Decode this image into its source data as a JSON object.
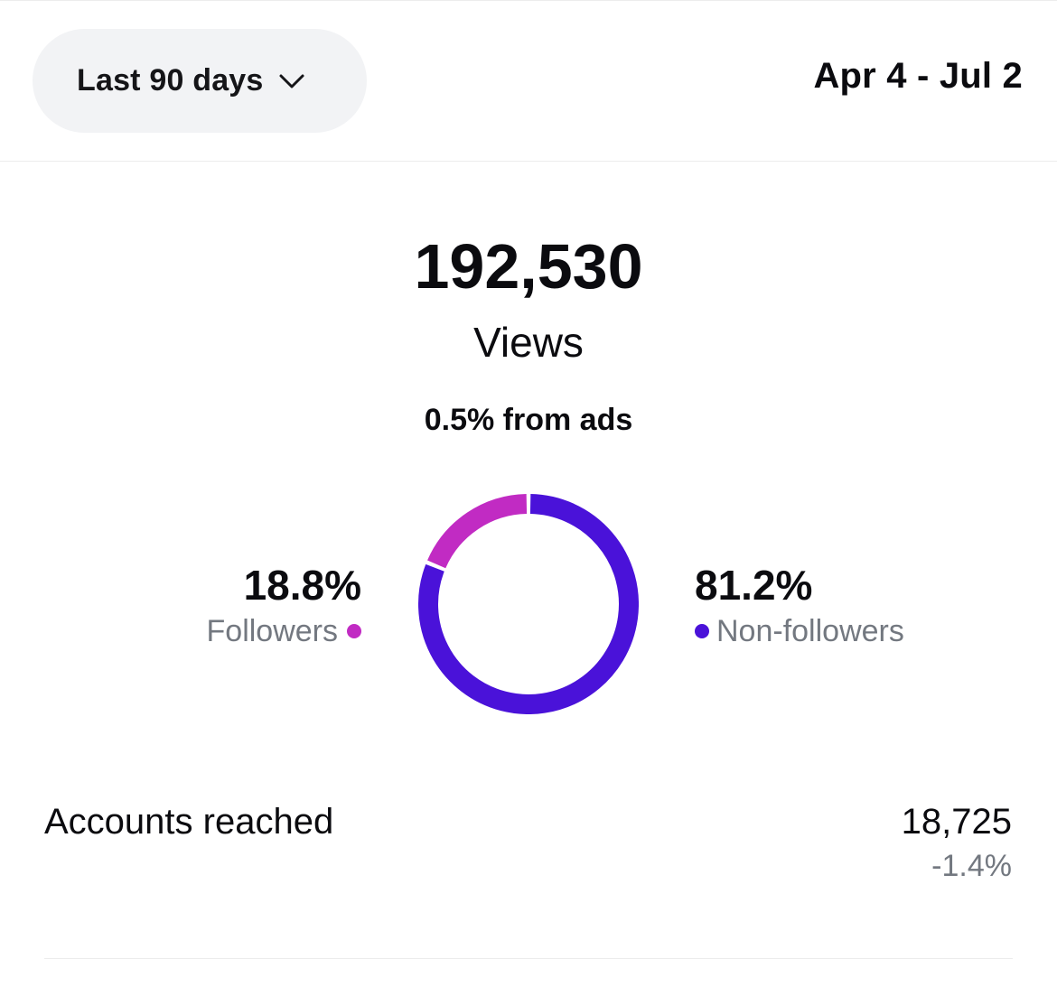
{
  "header": {
    "period_label": "Last 90 days",
    "date_range": "Apr 4 - Jul 2"
  },
  "summary": {
    "views_value": "192,530",
    "views_label": "Views",
    "ads_note": "0.5% from ads"
  },
  "breakdown": {
    "followers": {
      "percent": "18.8%",
      "label": "Followers",
      "value": 18.8,
      "color": "#c12bc3"
    },
    "non_followers": {
      "percent": "81.2%",
      "label": "Non-followers",
      "value": 81.2,
      "color": "#4a12d9"
    }
  },
  "metrics": {
    "accounts_reached_label": "Accounts reached",
    "accounts_reached_value": "18,725",
    "accounts_reached_change": "-1.4%"
  }
}
